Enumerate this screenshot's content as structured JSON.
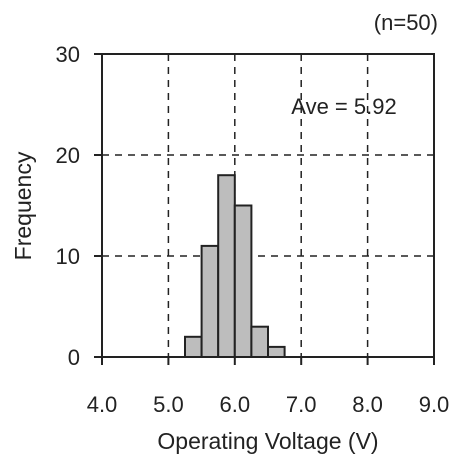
{
  "chart_data": {
    "type": "bar",
    "subtype": "histogram",
    "sample_size_label": "(n=50)",
    "annotation": "Ave = 5.92",
    "xlabel": "Operating Voltage (V)",
    "ylabel": "Frequency",
    "xlim": [
      4.0,
      9.0
    ],
    "ylim": [
      0,
      30
    ],
    "x_ticks": [
      {
        "value": 4.0,
        "label": "4.0"
      },
      {
        "value": 5.0,
        "label": "5.0"
      },
      {
        "value": 6.0,
        "label": "6.0"
      },
      {
        "value": 7.0,
        "label": "7.0"
      },
      {
        "value": 8.0,
        "label": "8.0"
      },
      {
        "value": 9.0,
        "label": "9.0"
      }
    ],
    "y_ticks": [
      {
        "value": 0,
        "label": "0"
      },
      {
        "value": 10,
        "label": "10"
      },
      {
        "value": 20,
        "label": "20"
      },
      {
        "value": 30,
        "label": "30"
      }
    ],
    "bin_width": 0.25,
    "bins": [
      {
        "start": 5.25,
        "end": 5.5,
        "count": 2
      },
      {
        "start": 5.5,
        "end": 5.75,
        "count": 11
      },
      {
        "start": 5.75,
        "end": 6.0,
        "count": 18
      },
      {
        "start": 6.0,
        "end": 6.25,
        "count": 15
      },
      {
        "start": 6.25,
        "end": 6.5,
        "count": 3
      },
      {
        "start": 6.5,
        "end": 6.75,
        "count": 1
      }
    ],
    "grid": "dashed",
    "bar_color": "#bdbdbd",
    "edge_color": "#222222"
  }
}
